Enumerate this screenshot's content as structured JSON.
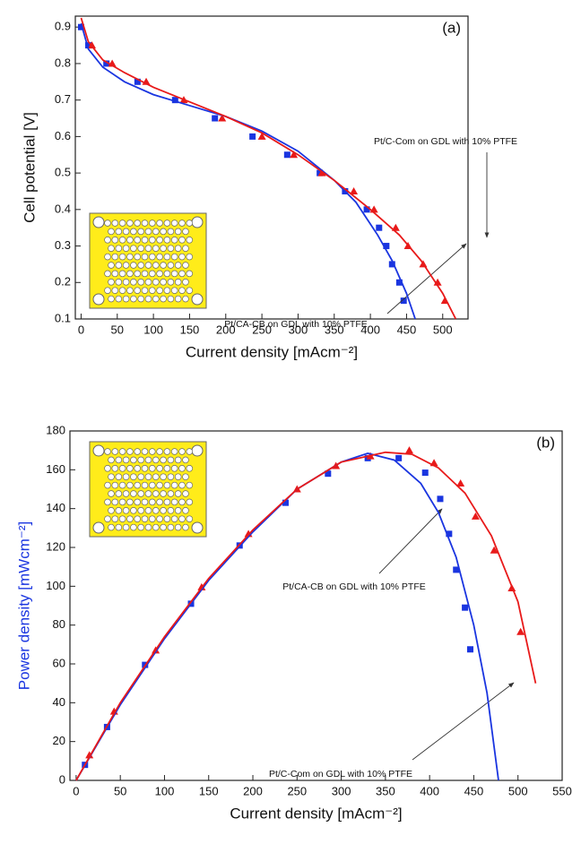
{
  "chart_data": [
    {
      "type": "scatter",
      "panel_label": "(a)",
      "xlabel": "Current density [mAcm⁻²]",
      "ylabel": "Cell potential [V]",
      "xlim": [
        -8,
        535
      ],
      "ylim": [
        0.1,
        0.93
      ],
      "xticks": [
        0,
        50,
        100,
        150,
        200,
        250,
        300,
        350,
        400,
        450,
        500
      ],
      "yticks": [
        0.1,
        0.2,
        0.3,
        0.4,
        0.5,
        0.6,
        0.7,
        0.8,
        0.9
      ],
      "series": [
        {
          "name": "Pt/CA-CB on GDL with 10% PTFE",
          "color": "#1a35e0",
          "marker": "square",
          "x": [
            0,
            10,
            35,
            78,
            130,
            185,
            237,
            285,
            330,
            365,
            395,
            412,
            422,
            430,
            440,
            446
          ],
          "values": [
            0.9,
            0.85,
            0.8,
            0.75,
            0.7,
            0.65,
            0.6,
            0.55,
            0.5,
            0.45,
            0.4,
            0.35,
            0.3,
            0.25,
            0.2,
            0.15
          ]
        },
        {
          "name": "Pt/C-Com on GDL with 10% PTFE",
          "color": "#e81a1a",
          "marker": "triangle",
          "x": [
            15,
            43,
            90,
            142,
            195,
            250,
            294,
            333,
            377,
            405,
            435,
            452,
            473,
            493,
            503
          ],
          "values": [
            0.85,
            0.8,
            0.75,
            0.7,
            0.65,
            0.6,
            0.55,
            0.5,
            0.45,
            0.4,
            0.35,
            0.3,
            0.25,
            0.2,
            0.15
          ]
        },
        {
          "color": "#1a35e0",
          "marker": "none",
          "x": [
            0,
            10,
            30,
            60,
            100,
            150,
            200,
            250,
            300,
            350,
            380,
            410,
            430,
            450,
            462
          ],
          "values": [
            0.91,
            0.84,
            0.79,
            0.75,
            0.715,
            0.685,
            0.655,
            0.615,
            0.56,
            0.48,
            0.42,
            0.33,
            0.26,
            0.17,
            0.1
          ]
        },
        {
          "color": "#e81a1a",
          "marker": "none",
          "x": [
            0,
            10,
            30,
            60,
            100,
            150,
            200,
            250,
            300,
            350,
            400,
            440,
            470,
            500,
            518
          ],
          "values": [
            0.925,
            0.86,
            0.81,
            0.775,
            0.735,
            0.695,
            0.655,
            0.61,
            0.55,
            0.48,
            0.4,
            0.33,
            0.26,
            0.17,
            0.1
          ]
        }
      ]
    },
    {
      "type": "scatter",
      "panel_label": "(b)",
      "xlabel": "Current density [mAcm⁻²]",
      "ylabel": "Power density [mWcm⁻²]",
      "ylabel_color": "#1a35e0",
      "xlim": [
        -7,
        550
      ],
      "ylim": [
        0,
        180
      ],
      "xticks": [
        0,
        50,
        100,
        150,
        200,
        250,
        300,
        350,
        400,
        450,
        500,
        550
      ],
      "yticks": [
        0,
        20,
        40,
        60,
        80,
        100,
        120,
        140,
        160,
        180
      ],
      "series": [
        {
          "name": "Pt/CA-CB on GDL with 10% PTFE",
          "color": "#1a35e0",
          "marker": "square",
          "x": [
            10,
            35,
            78,
            130,
            185,
            237,
            285,
            330,
            365,
            395,
            412,
            422,
            430,
            440,
            446
          ],
          "values": [
            8,
            27.5,
            59.5,
            91,
            121,
            143,
            158,
            166,
            166,
            158.5,
            145,
            127,
            108.5,
            89,
            67.5
          ]
        },
        {
          "name": "Pt/C-Com on GDL with 10% PTFE",
          "color": "#e81a1a",
          "marker": "triangle",
          "x": [
            15,
            43,
            90,
            142,
            195,
            250,
            294,
            333,
            377,
            405,
            435,
            452,
            473,
            493,
            503
          ],
          "values": [
            13,
            35.5,
            67,
            99.5,
            127,
            150,
            162,
            167,
            170,
            163.5,
            153,
            136,
            118.5,
            99,
            76.5
          ]
        },
        {
          "color": "#1a35e0",
          "marker": "none",
          "x": [
            0,
            50,
            100,
            150,
            200,
            250,
            300,
            330,
            360,
            390,
            410,
            430,
            450,
            465,
            478
          ],
          "values": [
            0,
            39,
            73,
            103,
            128,
            150,
            164,
            168.5,
            165,
            153,
            138,
            115,
            80,
            45,
            0
          ]
        },
        {
          "color": "#e81a1a",
          "marker": "none",
          "x": [
            0,
            50,
            100,
            150,
            200,
            250,
            300,
            350,
            380,
            410,
            440,
            470,
            500,
            520
          ],
          "values": [
            0,
            40,
            74,
            104,
            129,
            150,
            164,
            169,
            168,
            161,
            148,
            126,
            92,
            50
          ]
        }
      ]
    }
  ]
}
